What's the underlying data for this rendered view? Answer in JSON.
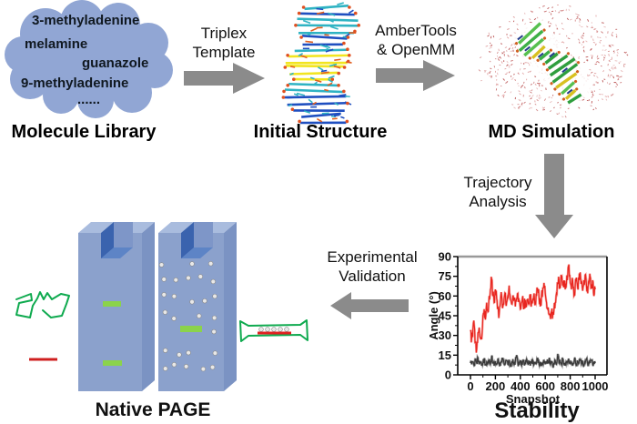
{
  "molecule_library": {
    "label": "Molecule Library",
    "items": [
      "3-methyladenine",
      "melamine",
      "guanazole",
      "9-methyladenine",
      "......"
    ]
  },
  "labels": {
    "initial_structure": "Initial Structure",
    "md_simulation": "MD Simulation",
    "native_page": "Native PAGE",
    "stability": "Stability"
  },
  "steps": {
    "triplex": {
      "line1": "Triplex",
      "line2": "Template"
    },
    "amber": {
      "line1": "AmberTools",
      "line2": "& OpenMM"
    },
    "trajectory": {
      "line1": "Trajectory",
      "line2": "Analysis"
    },
    "experimental": {
      "line1": "Experimental",
      "line2": "Validation"
    }
  },
  "colors": {
    "arrow_gray": "#8b8b8b",
    "cloud_blue": "#91a6d4",
    "gel_front": "#8ba1cc",
    "gel_top": "#a9bcde",
    "gel_side": "#7b93c3",
    "well_dark": "#3a63ae",
    "band_green": "#8bd34b",
    "outline_green": "#0faa4f",
    "marker_red": "#cf1f1f",
    "chart_red": "#e8251f",
    "chart_black": "#3a3a3a"
  },
  "chart_data": {
    "type": "line",
    "title": "Stability",
    "xlabel": "Snapshot",
    "ylabel": "Angle (°)",
    "ylim": [
      0,
      90
    ],
    "y_ticks": [
      0,
      15,
      30,
      45,
      60,
      75,
      90
    ],
    "x_ticks": [
      0,
      200,
      400,
      600,
      800,
      1000
    ],
    "grid": false,
    "legend": "none",
    "x_step": 10,
    "series": [
      {
        "name": "red trace",
        "color": "#e8251f",
        "halo": "#f7aaa5",
        "values": [
          33,
          28,
          35,
          38,
          25,
          20,
          32,
          36,
          28,
          27,
          45,
          50,
          42,
          55,
          48,
          60,
          65,
          73,
          60,
          55,
          65,
          58,
          52,
          46,
          56,
          60,
          52,
          58,
          62,
          55,
          60,
          68,
          58,
          54,
          60,
          57,
          52,
          58,
          62,
          56,
          50,
          55,
          60,
          52,
          57,
          53,
          58,
          55,
          60,
          54,
          58,
          62,
          55,
          60,
          65,
          58,
          52,
          60,
          66,
          70,
          62,
          55,
          50,
          46,
          44,
          47,
          45,
          50,
          55,
          62,
          70,
          72,
          66,
          74,
          68,
          72,
          65,
          70,
          76,
          84,
          70,
          65,
          72,
          60,
          68,
          74,
          66,
          72,
          78,
          70,
          64,
          72,
          76,
          68,
          62,
          70,
          75,
          66,
          72,
          60,
          65
        ]
      },
      {
        "name": "black trace",
        "color": "#3a3a3a",
        "halo": "#9d9d9d",
        "values": [
          9,
          8,
          10,
          7,
          11,
          9,
          13,
          8,
          10,
          7,
          9,
          12,
          8,
          10,
          9,
          11,
          8,
          14,
          9,
          7,
          10,
          8,
          12,
          9,
          7,
          10,
          13,
          8,
          9,
          11,
          8,
          10,
          7,
          9,
          12,
          8,
          10,
          15,
          9,
          8,
          10,
          7,
          11,
          9,
          8,
          12,
          9,
          10,
          7,
          9,
          11,
          8,
          10,
          9,
          13,
          8,
          10,
          7,
          9,
          11,
          8,
          10,
          9,
          12,
          8,
          10,
          7,
          9,
          11,
          8,
          16,
          9,
          10,
          8,
          12,
          9,
          7,
          10,
          9,
          11,
          8,
          10,
          7,
          9,
          12,
          8,
          10,
          9,
          11,
          8,
          10,
          7,
          9,
          12,
          8,
          10,
          9,
          11,
          8,
          10,
          9
        ]
      }
    ]
  }
}
